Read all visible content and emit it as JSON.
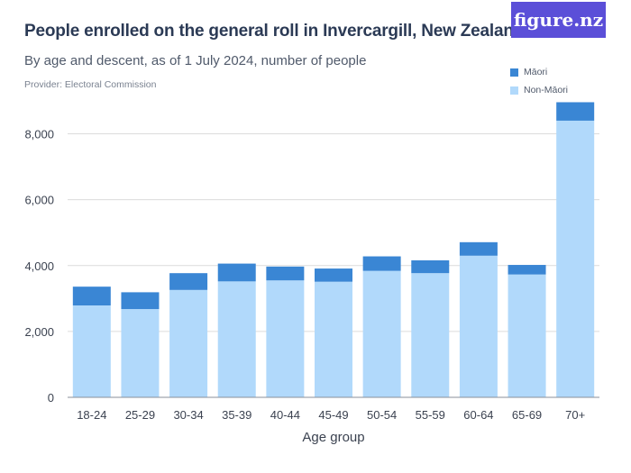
{
  "header": {
    "title": "People enrolled on the general roll in Invercargill, New Zealand",
    "subtitle": "By age and descent, as of 1 July 2024, number of people",
    "provider": "Provider: Electoral Commission",
    "logo": "figure.nz"
  },
  "colors": {
    "maori": "#3a86d4",
    "non_maori": "#b1d9fb",
    "grid": "#dcdcdc",
    "axis_text": "#3b4250",
    "logo_bg": "#5b4fd8"
  },
  "chart_data": {
    "type": "bar",
    "stacked": true,
    "title": "People enrolled on the general roll in Invercargill, New Zealand",
    "subtitle": "By age and descent, as of 1 July 2024, number of people",
    "xlabel": "Age group",
    "ylabel": "",
    "ylim": [
      0,
      9000
    ],
    "yticks": [
      0,
      2000,
      4000,
      6000,
      8000
    ],
    "ytick_labels": [
      "0",
      "2,000",
      "4,000",
      "6,000",
      "8,000"
    ],
    "grid": true,
    "legend_position": "top-right",
    "categories": [
      "18-24",
      "25-29",
      "30-34",
      "35-39",
      "40-44",
      "45-49",
      "50-54",
      "55-59",
      "60-64",
      "65-69",
      "70+"
    ],
    "series": [
      {
        "name": "Non-Māori",
        "values": [
          2790,
          2680,
          3260,
          3520,
          3550,
          3510,
          3840,
          3770,
          4300,
          3730,
          8400
        ]
      },
      {
        "name": "Māori",
        "values": [
          570,
          510,
          510,
          540,
          420,
          400,
          440,
          390,
          410,
          290,
          560
        ]
      }
    ]
  }
}
